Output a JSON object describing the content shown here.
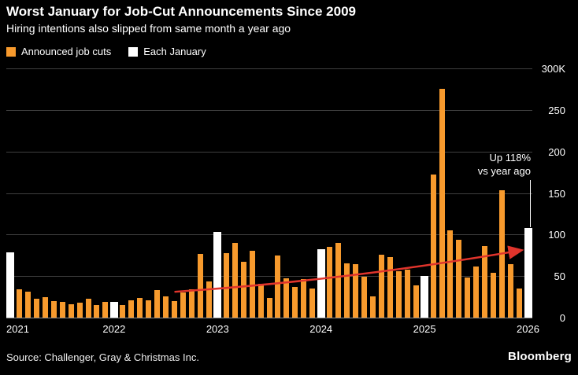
{
  "header": {
    "title": "Worst January for Job-Cut Announcements Since 2009",
    "subtitle": "Hiring intentions also slipped from same month a year ago"
  },
  "legend": {
    "items": [
      {
        "label": "Announced job cuts",
        "color": "#f79a2d"
      },
      {
        "label": "Each January",
        "color": "#ffffff"
      }
    ]
  },
  "annotation": {
    "line1": "Up 118%",
    "line2": "vs year ago"
  },
  "footer": {
    "source": "Source: Challenger, Gray & Christmas Inc.",
    "brand": "Bloomberg"
  },
  "chart_data": {
    "type": "bar",
    "title": "Worst January for Job-Cut Announcements Since 2009",
    "subtitle": "Hiring intentions also slipped from same month a year ago",
    "unit": "thousands of announced job cuts",
    "ylim": [
      0,
      300
    ],
    "yticks": [
      0,
      50,
      100,
      150,
      200,
      250,
      300
    ],
    "ytick_labels": [
      "0",
      "50",
      "100",
      "150",
      "200",
      "250",
      "300K"
    ],
    "x_tick_years": [
      "2021",
      "2022",
      "2023",
      "2024",
      "2025",
      "2026"
    ],
    "january_highlight": true,
    "months": [
      "2021-01",
      "2021-02",
      "2021-03",
      "2021-04",
      "2021-05",
      "2021-06",
      "2021-07",
      "2021-08",
      "2021-09",
      "2021-10",
      "2021-11",
      "2021-12",
      "2022-01",
      "2022-02",
      "2022-03",
      "2022-04",
      "2022-05",
      "2022-06",
      "2022-07",
      "2022-08",
      "2022-09",
      "2022-10",
      "2022-11",
      "2022-12",
      "2023-01",
      "2023-02",
      "2023-03",
      "2023-04",
      "2023-05",
      "2023-06",
      "2023-07",
      "2023-08",
      "2023-09",
      "2023-10",
      "2023-11",
      "2023-12",
      "2024-01",
      "2024-02",
      "2024-03",
      "2024-04",
      "2024-05",
      "2024-06",
      "2024-07",
      "2024-08",
      "2024-09",
      "2024-10",
      "2024-11",
      "2024-12",
      "2025-01",
      "2025-02",
      "2025-03",
      "2025-04",
      "2025-05",
      "2025-06",
      "2025-07",
      "2025-08",
      "2025-09",
      "2025-10",
      "2025-11",
      "2025-12",
      "2026-01"
    ],
    "values": [
      79,
      34,
      31,
      23,
      25,
      20,
      19,
      16,
      18,
      23,
      15,
      19,
      19,
      15,
      21,
      24,
      21,
      33,
      26,
      20,
      30,
      34,
      77,
      44,
      103,
      78,
      90,
      67,
      80,
      41,
      24,
      75,
      47,
      37,
      46,
      35,
      82,
      85,
      90,
      65,
      64,
      49,
      26,
      76,
      73,
      56,
      58,
      39,
      50,
      172,
      275,
      105,
      94,
      48,
      62,
      86,
      54,
      153,
      64,
      35,
      108
    ],
    "january_indices": [
      0,
      12,
      24,
      36,
      48,
      60
    ],
    "colors": {
      "bar": "#f79a2d",
      "january": "#ffffff",
      "trend": "#e0342c",
      "grid": "#3f3f3f"
    },
    "trend_arrow": {
      "from_index": 19,
      "from_value": 32,
      "ctrl_value": 46,
      "to_index": 59.2,
      "to_value": 82
    },
    "legend_position": "top-left",
    "grid": true
  }
}
